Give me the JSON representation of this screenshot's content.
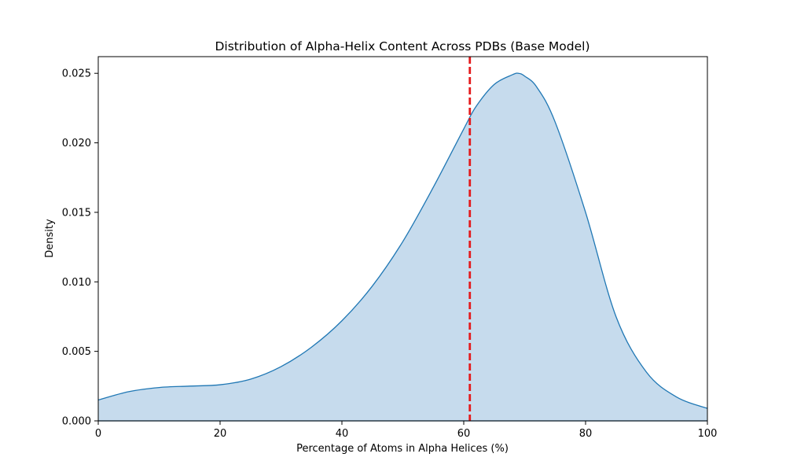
{
  "chart_data": {
    "type": "area",
    "title": "Distribution of Alpha-Helix Content Across PDBs (Base Model)",
    "xlabel": "Percentage of Atoms in Alpha Helices (%)",
    "ylabel": "Density",
    "xlim": [
      0,
      100
    ],
    "ylim": [
      0,
      0.0262
    ],
    "x_ticks": [
      0,
      20,
      40,
      60,
      80,
      100
    ],
    "x_tick_labels": [
      "0",
      "20",
      "40",
      "60",
      "80",
      "100"
    ],
    "y_ticks": [
      0,
      0.005,
      0.01,
      0.015,
      0.02,
      0.025
    ],
    "y_tick_labels": [
      "0.000",
      "0.005",
      "0.010",
      "0.015",
      "0.020",
      "0.025"
    ],
    "grid": false,
    "series": [
      {
        "x": [
          0,
          5,
          10,
          15,
          20,
          25,
          30,
          35,
          40,
          45,
          50,
          55,
          60,
          62,
          65,
          68,
          69,
          70,
          72,
          75,
          80,
          85,
          90,
          95,
          100
        ],
        "y": [
          0.0015,
          0.0021,
          0.0024,
          0.0025,
          0.0026,
          0.003,
          0.0039,
          0.0053,
          0.0072,
          0.0097,
          0.0129,
          0.0168,
          0.021,
          0.0226,
          0.0242,
          0.0249,
          0.025,
          0.0248,
          0.024,
          0.0215,
          0.015,
          0.0075,
          0.0035,
          0.0017,
          0.0009
        ],
        "color": "#1f77b4",
        "fill_color": "#c6dbed"
      }
    ],
    "reference_line": {
      "x": 61,
      "color": "#e41a1c",
      "style": "dashed"
    }
  }
}
